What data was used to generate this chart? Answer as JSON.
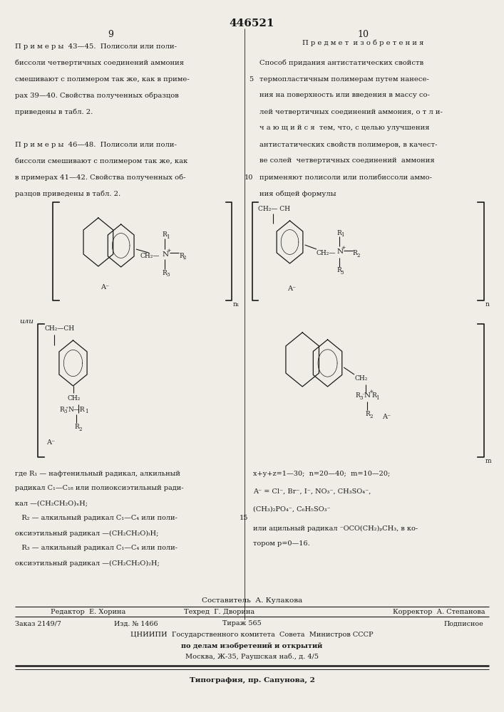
{
  "patent_number": "446521",
  "page_left": "9",
  "page_right": "10",
  "bg_color": "#f0ede6",
  "text_color": "#1a1a1a",
  "left_col_lines": [
    "П р и м е р ы  43—45.  Полисоли или поли-",
    "биссоли четвертичных соединений аммония",
    "смешивают с полимером так же, как в приме-",
    "рах 39—40. Свойства полученных образцов",
    "приведены в табл. 2.",
    "",
    "П р и м е р ы  46—48.  Полисоли или поли-",
    "биссоли смешивают с полимером так же, как",
    "в примерах 41—42. Свойства полученных об-",
    "разцов приведены в табл. 2."
  ],
  "right_col_header": "П р е д м е т  и з о б р е т е н и я",
  "right_col_lines": [
    "Способ придания антистатических свойств",
    "термопластичным полимерам путем нанесе-",
    "ния на поверхность или введения в массу со-",
    "лей четвертичных соединений аммония, о т л и-",
    "ч а ю щ и й с я  тем, что, с целью улучшения",
    "антистатических свойств полимеров, в качест-",
    "ве солей  четвертичных соединений  аммония",
    "применяют полисоли или полибиссоли аммо-",
    "ния общей формулы"
  ],
  "right_line_numbers": [
    "",
    "5",
    "",
    "",
    "",
    "",
    "",
    "10",
    ""
  ],
  "desc_left": [
    "где R₁ — нафтенильный радикал, алкильный",
    "радикал C₁—C₁₈ или полиоксиэтильный ради-",
    "кал —(CH₂CH₂O)ₓH;",
    "   R₂ — алкильный радикал C₁—C₄ или поли-",
    "оксиэтильный радикал —(CH₂CH₂O)ₗH;",
    "   R₃ — алкильный радикал C₁—C₄ или поли-",
    "оксиэтильный радикал —(CH₂CH₂O)₂H;"
  ],
  "desc_right": [
    "x+y+z=1—30;  n=20—40;  m=10—20;",
    "A⁻ = Cl⁻, Br⁻, I⁻, NO₃⁻, CH₃SO₄⁻,",
    "(CH₃)₂PO₄⁻, C₆H₅SO₃⁻",
    "или ацильный радикал ⁻OCO(CH₂)ₚCH₃, в ко-",
    "тором p=0—16."
  ],
  "footer": {
    "compiler": "Составитель  А. Кулакова",
    "editor": "Редактор  Е. Хорина",
    "techred": "Техред  Г. Дворина",
    "corrector": "Корректор  А. Степанова",
    "order": "Заказ 2149/7",
    "izdanie": "Изд. № 1466",
    "tirazh": "Тираж 565",
    "podpisnoe": "Подписное",
    "org": "ЦНИИПИ  Государственного комитета  Совета  Министров СССР",
    "dept": "по делам изобретений и открытий",
    "address": "Москва, Ж-35, Раушская наб., д. 4/5",
    "print": "Типография, пр. Сапунова, 2"
  }
}
